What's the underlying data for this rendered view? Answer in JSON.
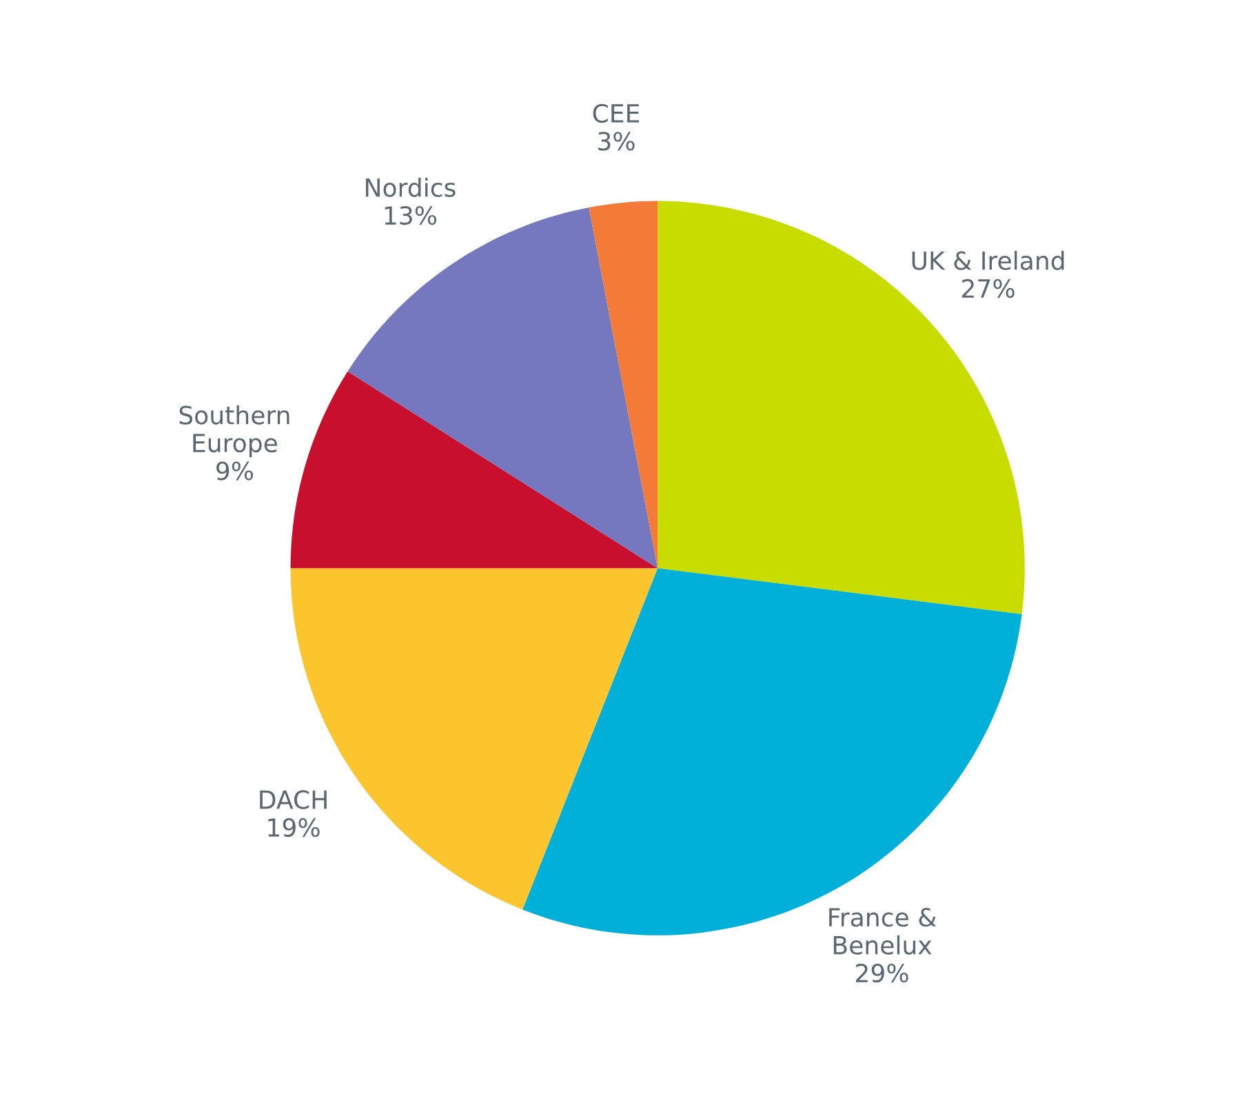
{
  "chart_data": {
    "type": "pie",
    "categories": [
      "UK & Ireland",
      "France &\nBenelux",
      "DACH",
      "Southern\nEurope",
      "Nordics",
      "CEE"
    ],
    "values": [
      27,
      29,
      19,
      9,
      13,
      3
    ],
    "value_labels": [
      "27%",
      "29%",
      "19%",
      "9%",
      "13%",
      "3%"
    ],
    "colors": [
      "#c8dc00",
      "#00b0d8",
      "#fcc52e",
      "#c8102e",
      "#7577bf",
      "#f47a38"
    ],
    "legend": false
  }
}
